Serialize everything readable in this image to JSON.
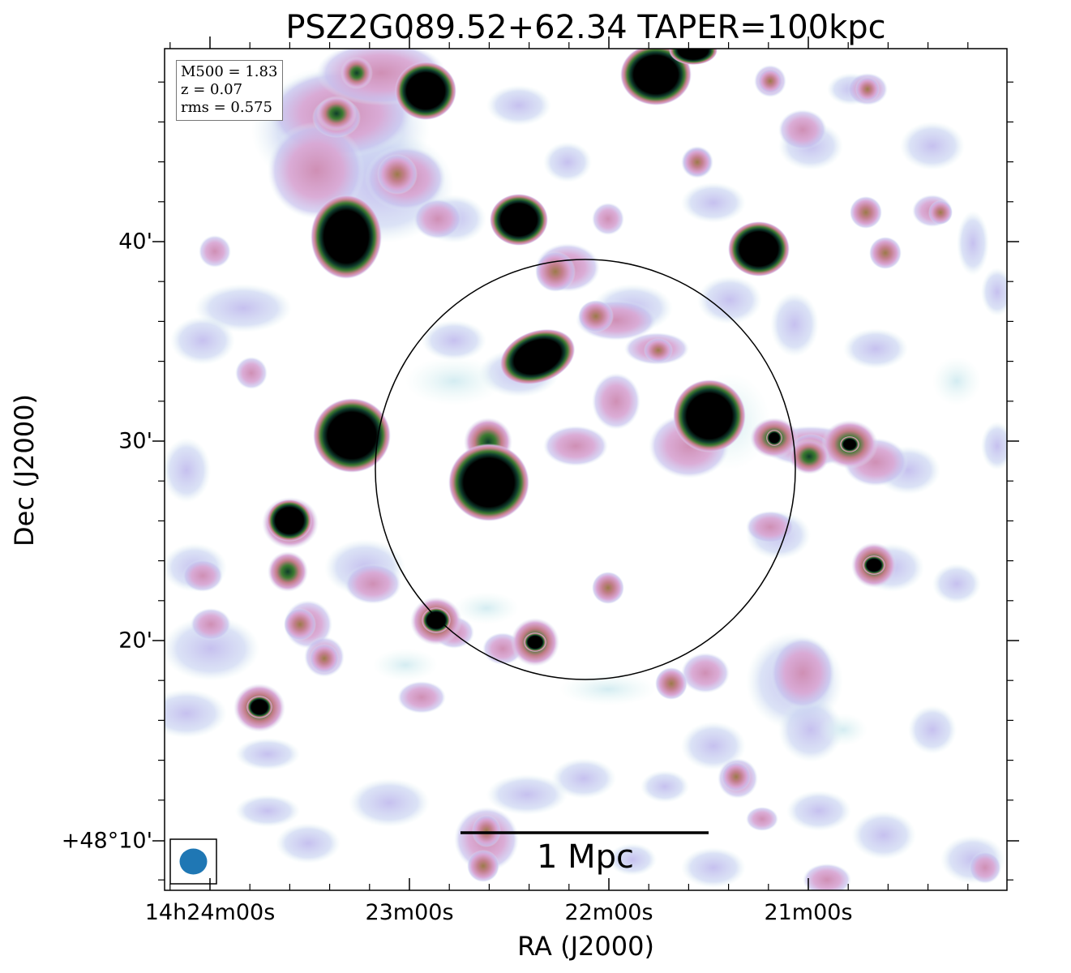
{
  "title": "PSZ2G089.52+62.34 TAPER=100kpc",
  "axes": {
    "x_label": "RA (J2000)",
    "y_label": "Dec (J2000)",
    "x_ticks": [
      "14h24m00s",
      "23m00s",
      "22m00s",
      "21m00s"
    ],
    "y_ticks": [
      "40'",
      "30'",
      "20'",
      "+48°10'"
    ]
  },
  "info_box": {
    "mass": "M500 = 1.83",
    "redshift": "z = 0.07",
    "rms": "rms = 0.575"
  },
  "scale_bar": {
    "label": "1 Mpc"
  },
  "colors": {
    "faint": "#c9c3ee",
    "pink": "#d8a2cc",
    "rose": "#c8808f",
    "green": "#3f7a2e",
    "core": "#000000",
    "beam": "#1f77b4"
  }
}
